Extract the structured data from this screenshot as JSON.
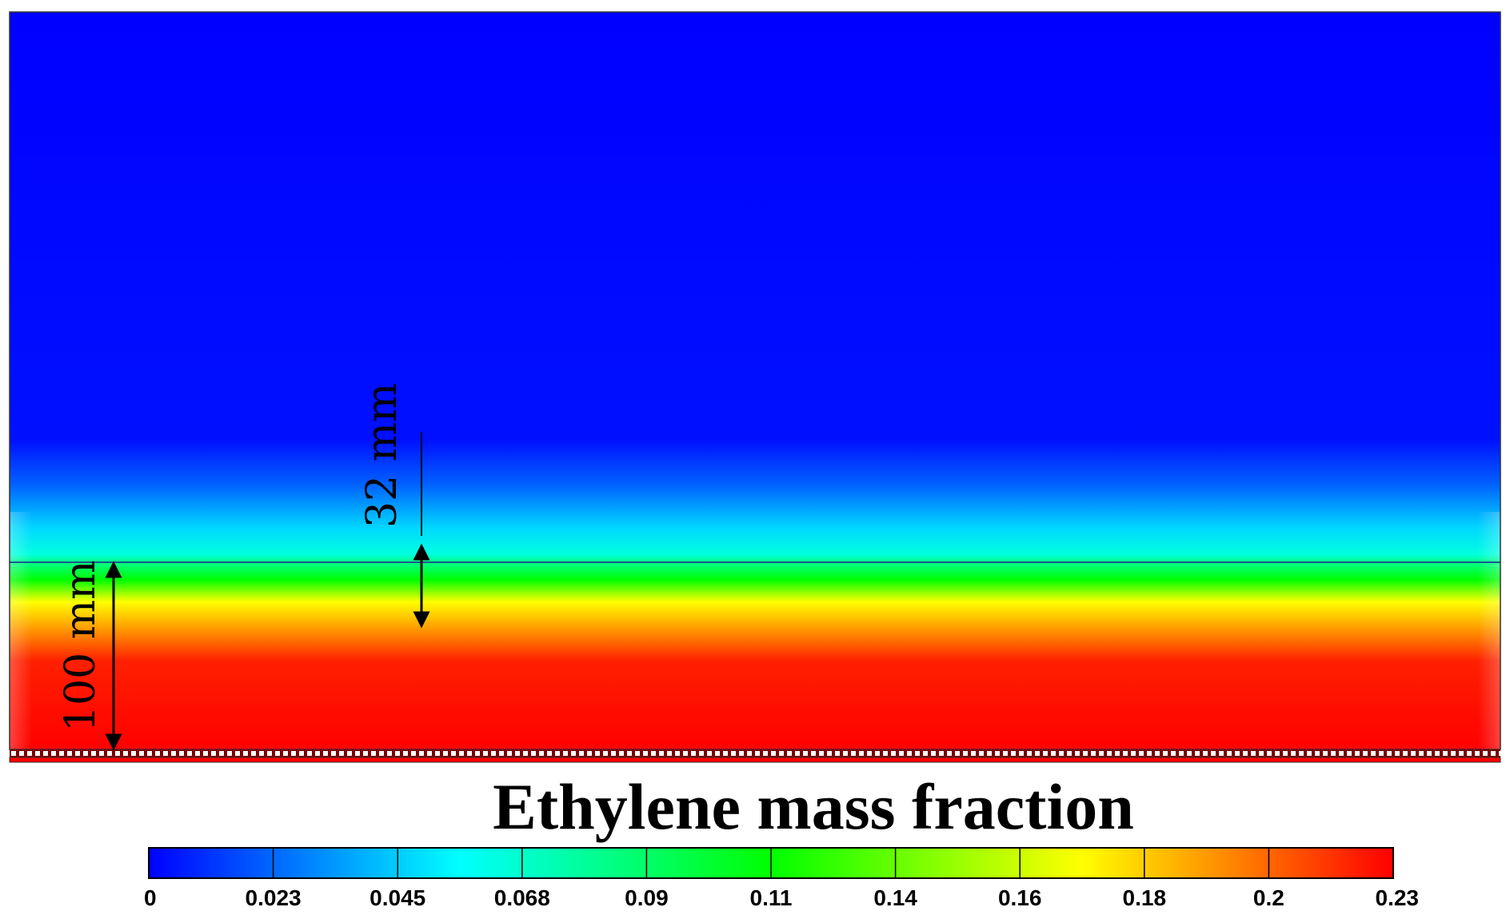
{
  "figure": {
    "title": "Ethylene mass fraction",
    "dimensions": [
      {
        "label": "32 mm",
        "value_mm": 32
      },
      {
        "label": "100 mm",
        "value_mm": 100
      }
    ]
  },
  "chart_data": {
    "type": "heatmap",
    "title": "Ethylene mass fraction",
    "colorbar": {
      "min": 0,
      "max": 0.23,
      "tick_labels": [
        "0",
        "0.023",
        "0.045",
        "0.068",
        "0.09",
        "0.11",
        "0.14",
        "0.16",
        "0.18",
        "0.2",
        "0.23"
      ],
      "colors": [
        "#0000ff",
        "#0080ff",
        "#00ffff",
        "#00ff80",
        "#00ff00",
        "#80ff00",
        "#ffff00",
        "#ff8000",
        "#ff0000"
      ]
    },
    "legend_position": "bottom"
  },
  "colors": {
    "low": "#0000ff",
    "mid_low": "#00ffff",
    "mid": "#00ff00",
    "mid_high": "#ffff00",
    "high": "#ff0000",
    "interface_line": "#1a5a8a",
    "arrow": "#000000"
  }
}
